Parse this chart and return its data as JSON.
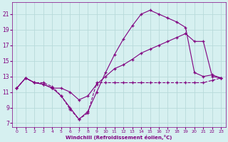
{
  "background_color": "#d6f0f0",
  "grid_color": "#b8dada",
  "line_color": "#800080",
  "xlabel": "Windchill (Refroidissement éolien,°C)",
  "xlim": [
    -0.5,
    23.5
  ],
  "ylim": [
    6.5,
    22.5
  ],
  "yticks": [
    7,
    9,
    11,
    13,
    15,
    17,
    19,
    21
  ],
  "xticks": [
    0,
    1,
    2,
    3,
    4,
    5,
    6,
    7,
    8,
    9,
    10,
    11,
    12,
    13,
    14,
    15,
    16,
    17,
    18,
    19,
    20,
    21,
    22,
    23
  ],
  "series": [
    {
      "x": [
        0,
        1,
        2,
        3,
        4,
        5,
        6,
        7,
        8,
        9,
        10,
        11,
        12,
        13,
        14,
        15,
        16,
        17,
        18,
        19,
        20,
        21,
        22,
        23
      ],
      "y": [
        11.5,
        12.8,
        12.2,
        12.2,
        11.7,
        10.5,
        8.8,
        7.5,
        8.3,
        12.2,
        12.2,
        12.2,
        12.2,
        12.2,
        12.2,
        12.2,
        12.2,
        12.2,
        12.2,
        12.2,
        12.2,
        12.2,
        12.5,
        12.8
      ],
      "linestyle": "--"
    },
    {
      "x": [
        0,
        1,
        2,
        3,
        4,
        5,
        6,
        7,
        8,
        9,
        10,
        11,
        12,
        13,
        14,
        15,
        16,
        17,
        18,
        19,
        20,
        21,
        22,
        23
      ],
      "y": [
        11.5,
        12.8,
        12.2,
        12.0,
        11.5,
        11.5,
        11.0,
        10.0,
        10.5,
        12.0,
        13.0,
        14.0,
        14.5,
        15.2,
        16.0,
        16.5,
        17.0,
        17.5,
        18.0,
        18.5,
        17.5,
        17.5,
        13.0,
        12.8
      ],
      "linestyle": "-"
    },
    {
      "x": [
        0,
        1,
        2,
        3,
        4,
        5,
        6,
        7,
        8,
        9,
        10,
        11,
        12,
        13,
        14,
        15,
        16,
        17,
        18,
        19,
        20,
        21,
        22,
        23
      ],
      "y": [
        11.5,
        12.8,
        12.2,
        12.0,
        11.5,
        10.5,
        9.0,
        7.5,
        8.5,
        11.0,
        13.5,
        15.8,
        17.8,
        19.5,
        21.0,
        21.5,
        21.0,
        20.5,
        20.0,
        19.3,
        13.5,
        13.0,
        13.2,
        12.8
      ],
      "linestyle": "-"
    }
  ]
}
